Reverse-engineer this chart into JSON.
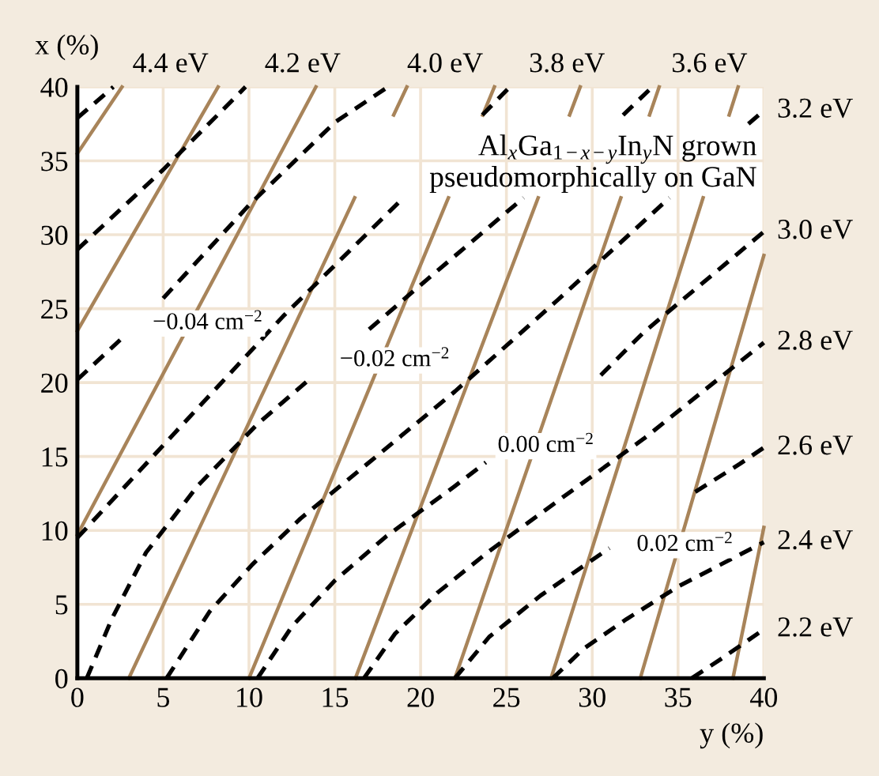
{
  "chart_data": {
    "type": "line",
    "xlabel": "y (%)",
    "ylabel": "x (%)",
    "xlim": [
      0,
      40
    ],
    "ylim": [
      0,
      40
    ],
    "xticks": [
      0,
      5,
      10,
      15,
      20,
      25,
      30,
      35,
      40
    ],
    "yticks": [
      0,
      5,
      10,
      15,
      20,
      25,
      30,
      35,
      40
    ],
    "grid": true,
    "marker": "none",
    "annotations": [
      "Al$_{x}$Ga$_{1−x−y}$In$_{y}$N grown\npseudomorphically on GaN",
      "−0.04 cm$^{−2}$",
      "−0.02 cm$^{−2}$",
      "0.00 cm$^{−2}$",
      "0.02 cm$^{−2}$"
    ],
    "series": [
      {
        "color": "#a8845a",
        "line_style": "solid",
        "x": [
          0,
          2.6
        ],
        "values": [
          35.5,
          40
        ]
      },
      {
        "color": "#a8845a",
        "line_style": "solid",
        "x": [
          0,
          8.2
        ],
        "values": [
          23.5,
          40
        ]
      },
      {
        "color": "#a8845a",
        "line_style": "solid",
        "x": [
          0,
          13.9
        ],
        "values": [
          9.7,
          40
        ]
      },
      {
        "color": "#a8845a",
        "line_style": "solid",
        "x": [
          3,
          16.16,
          17.3,
          18.43,
          19.2
        ],
        "values": [
          0,
          32.5,
          null,
          38.1,
          40
        ]
      },
      {
        "color": "#a8845a",
        "line_style": "solid",
        "x": [
          10,
          21.62,
          22.6,
          23.62,
          24.3
        ],
        "values": [
          0,
          32.5,
          null,
          38.1,
          40
        ]
      },
      {
        "color": "#a8845a",
        "line_style": "solid",
        "x": [
          16.2,
          26.85,
          27.8,
          28.68,
          29.3
        ],
        "values": [
          0,
          32.5,
          null,
          38.1,
          40
        ]
      },
      {
        "color": "#a8845a",
        "line_style": "solid",
        "x": [
          22,
          31.67,
          32.5,
          33.34,
          33.9
        ],
        "values": [
          0,
          32.5,
          null,
          38.1,
          40
        ]
      },
      {
        "color": "#a8845a",
        "line_style": "solid",
        "x": [
          27.6,
          36.46,
          37.2,
          37.98,
          38.5
        ],
        "values": [
          0,
          32.5,
          null,
          38.1,
          40
        ]
      },
      {
        "color": "#a8845a",
        "line_style": "solid",
        "x": [
          32.8,
          40
        ],
        "values": [
          0,
          28.6
        ]
      },
      {
        "color": "#a8845a",
        "line_style": "solid",
        "x": [
          38.2,
          40
        ],
        "values": [
          0,
          10.2
        ]
      },
      {
        "name": "4.4 eV",
        "color": "#000000",
        "line_style": "dashed",
        "x": [
          0,
          2.1
        ],
        "values": [
          37.9,
          40
        ]
      },
      {
        "name": "4.2 eV",
        "color": "#000000",
        "line_style": "dashed",
        "x": [
          0,
          5.0,
          9.8
        ],
        "values": [
          29.0,
          34.4,
          40
        ]
      },
      {
        "name": "4.0 eV",
        "color": "#000000",
        "line_style": "dashed",
        "x": [
          0,
          2.6,
          3.8,
          5.0,
          10,
          15,
          18.1
        ],
        "values": [
          20.2,
          23.0,
          null,
          25.7,
          32,
          37.6,
          40
        ]
      },
      {
        "name": "3.8 eV",
        "color": "#000000",
        "line_style": "dashed",
        "x": [
          0,
          6,
          12,
          19,
          21.3,
          23.6,
          25.2
        ],
        "values": [
          9.5,
          17,
          24.5,
          32.5,
          null,
          38.1,
          40
        ]
      },
      {
        "name": "3.6 eV",
        "color": "#000000",
        "line_style": "dashed",
        "x": [
          0.55,
          2,
          4,
          7,
          10.5,
          13.5,
          15.2,
          17,
          20,
          26,
          29,
          31.8,
          33.5
        ],
        "values": [
          0,
          4,
          8.5,
          13,
          17.2,
          20.2,
          null,
          23.6,
          26.6,
          32.5,
          null,
          38.1,
          40
        ]
      },
      {
        "name": "3.2 eV",
        "color": "#000000",
        "line_style": "dashed",
        "x": [
          5.2,
          7.7,
          10.2,
          13,
          17,
          22,
          28,
          34.5,
          36.8,
          39.1,
          40
        ],
        "values": [
          0,
          4.5,
          7.7,
          10.8,
          14.6,
          19.4,
          25.6,
          32.5,
          null,
          37.5,
          38.4
        ]
      },
      {
        "name": "3.0 eV",
        "color": "#000000",
        "line_style": "dashed",
        "x": [
          10.5,
          12.5,
          15,
          18,
          22,
          23.8,
          27,
          30.5,
          33,
          40
        ],
        "values": [
          0,
          3.5,
          6.6,
          9.6,
          13,
          14.6,
          null,
          20.5,
          23.4,
          30.2
        ]
      },
      {
        "name": "2.8 eV",
        "color": "#000000",
        "line_style": "dashed",
        "x": [
          16.7,
          18.5,
          21,
          24,
          28,
          33,
          40
        ],
        "values": [
          0,
          3,
          5.8,
          8.6,
          12,
          16.2,
          22.7
        ]
      },
      {
        "name": "2.6 eV",
        "color": "#000000",
        "line_style": "dashed",
        "x": [
          22,
          24,
          27,
          31,
          32.4,
          36,
          38.6,
          40
        ],
        "values": [
          0,
          2.8,
          5.6,
          8.8,
          null,
          12.6,
          14.5,
          15.6
        ]
      },
      {
        "name": "2.4 eV",
        "color": "#000000",
        "line_style": "dashed",
        "x": [
          27.7,
          29.5,
          32,
          35,
          40
        ],
        "values": [
          0,
          2,
          4,
          6.2,
          9.2
        ]
      },
      {
        "name": "2.2 eV",
        "color": "#000000",
        "line_style": "dashed",
        "x": [
          35.8,
          37.5,
          40
        ],
        "values": [
          0,
          1.3,
          3.3
        ]
      }
    ]
  }
}
